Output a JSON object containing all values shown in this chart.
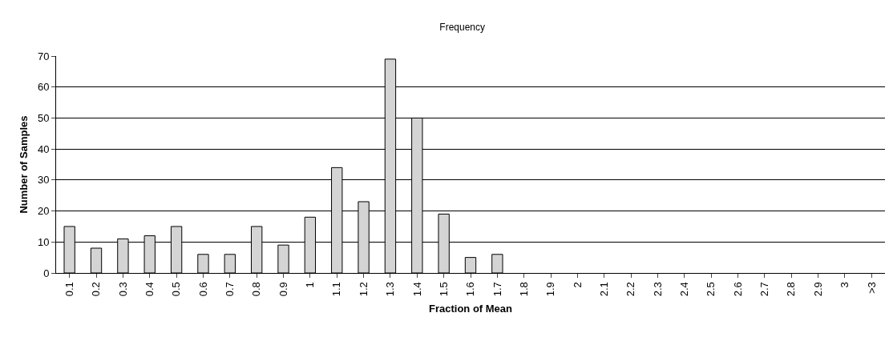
{
  "chart_data": {
    "type": "bar",
    "title": "Frequency",
    "xlabel": "Fraction of Mean",
    "ylabel": "Number of Samples",
    "categories": [
      "0.1",
      "0.2",
      "0.3",
      "0.4",
      "0.5",
      "0.6",
      "0.7",
      "0.8",
      "0.9",
      "1",
      "1.1",
      "1.2",
      "1.3",
      "1.4",
      "1.5",
      "1.6",
      "1.7",
      "1.8",
      "1.9",
      "2",
      "2.1",
      "2.2",
      "2.3",
      "2.4",
      "2.5",
      "2.6",
      "2.7",
      "2.8",
      "2.9",
      "3",
      ">3"
    ],
    "values": [
      15,
      8,
      11,
      12,
      15,
      6,
      6,
      15,
      9,
      18,
      34,
      23,
      69,
      50,
      19,
      5,
      6,
      0,
      0,
      0,
      0,
      0,
      0,
      0,
      0,
      0,
      0,
      0,
      0,
      0,
      0
    ],
    "color": "#d4d4d4",
    "ylim": [
      0,
      70
    ],
    "yticks": [
      0,
      10,
      20,
      30,
      40,
      50,
      60,
      70
    ],
    "grid": "y",
    "legend": false
  }
}
